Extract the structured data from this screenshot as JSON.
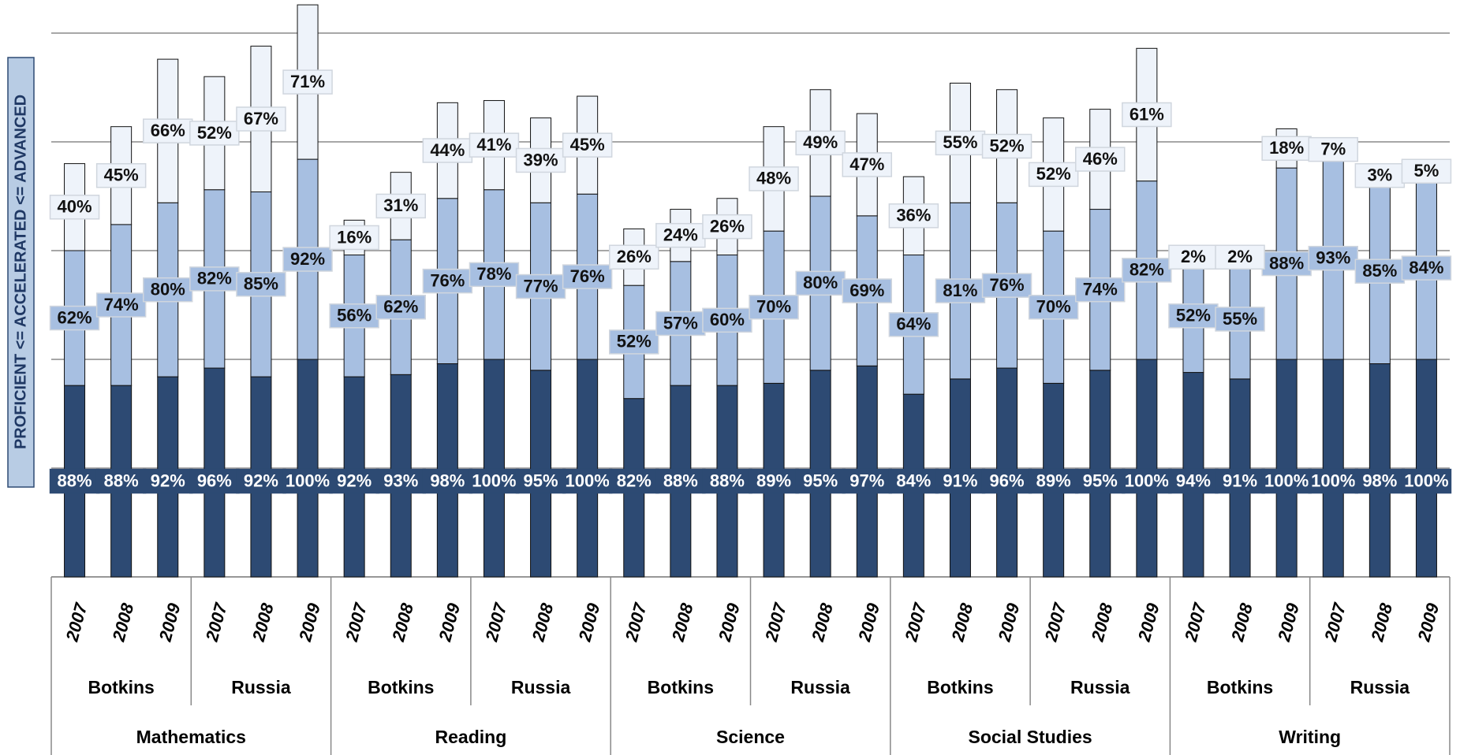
{
  "chart_data": {
    "type": "stacked_bar",
    "y_label": "PROFICIENT <= ACCELERATED <= ADVANCED",
    "categories": [
      "2007",
      "2008",
      "2009",
      "2007",
      "2008",
      "2009",
      "2007",
      "2008",
      "2009",
      "2007",
      "2008",
      "2009",
      "2007",
      "2008",
      "2009",
      "2007",
      "2008",
      "2009",
      "2007",
      "2008",
      "2009",
      "2007",
      "2008",
      "2009",
      "2007",
      "2008",
      "2009",
      "2007",
      "2008",
      "2009"
    ],
    "schools": [
      "Botkins",
      "Russia",
      "Botkins",
      "Russia",
      "Botkins",
      "Russia",
      "Botkins",
      "Russia",
      "Botkins",
      "Russia"
    ],
    "subjects": [
      "Mathematics",
      "Reading",
      "Science",
      "Social Studies",
      "Writing"
    ],
    "ylim": [
      0,
      250
    ],
    "yticks": [
      0,
      50,
      100,
      150,
      200,
      250
    ],
    "grid": true,
    "series": [
      {
        "color": "#2d4a73",
        "values": [
          88,
          88,
          92,
          96,
          92,
          100,
          92,
          93,
          98,
          100,
          95,
          100,
          82,
          88,
          88,
          89,
          95,
          97,
          84,
          91,
          96,
          89,
          95,
          100,
          94,
          91,
          100,
          100,
          98,
          100
        ],
        "value_labels": [
          "88%",
          "88%",
          "92%",
          "96%",
          "92%",
          "100%",
          "92%",
          "93%",
          "98%",
          "100%",
          "95%",
          "100%",
          "82%",
          "88%",
          "88%",
          "89%",
          "95%",
          "97%",
          "84%",
          "91%",
          "96%",
          "89%",
          "95%",
          "100%",
          "94%",
          "91%",
          "100%",
          "100%",
          "98%",
          "100%"
        ]
      },
      {
        "color": "#a7bfe1",
        "values": [
          62,
          74,
          80,
          82,
          85,
          92,
          56,
          62,
          76,
          78,
          77,
          76,
          52,
          57,
          60,
          70,
          80,
          69,
          64,
          81,
          76,
          70,
          74,
          82,
          52,
          55,
          88,
          93,
          85,
          84
        ],
        "value_labels": [
          "62%",
          "74%",
          "80%",
          "82%",
          "85%",
          "92%",
          "56%",
          "62%",
          "76%",
          "78%",
          "77%",
          "76%",
          "52%",
          "57%",
          "60%",
          "70%",
          "80%",
          "69%",
          "64%",
          "81%",
          "76%",
          "70%",
          "74%",
          "82%",
          "52%",
          "55%",
          "88%",
          "93%",
          "85%",
          "84%"
        ]
      },
      {
        "color": "#eef3fa",
        "values": [
          40,
          45,
          66,
          52,
          67,
          71,
          16,
          31,
          44,
          41,
          39,
          45,
          26,
          24,
          26,
          48,
          49,
          47,
          36,
          55,
          52,
          52,
          46,
          61,
          2,
          2,
          18,
          7,
          3,
          5
        ],
        "value_labels": [
          "40%",
          "45%",
          "66%",
          "52%",
          "67%",
          "71%",
          "16%",
          "31%",
          "44%",
          "41%",
          "39%",
          "45%",
          "26%",
          "24%",
          "26%",
          "48%",
          "49%",
          "47%",
          "36%",
          "55%",
          "52%",
          "52%",
          "46%",
          "61%",
          "2%",
          "2%",
          "18%",
          "7%",
          "3%",
          "5%"
        ]
      }
    ]
  }
}
